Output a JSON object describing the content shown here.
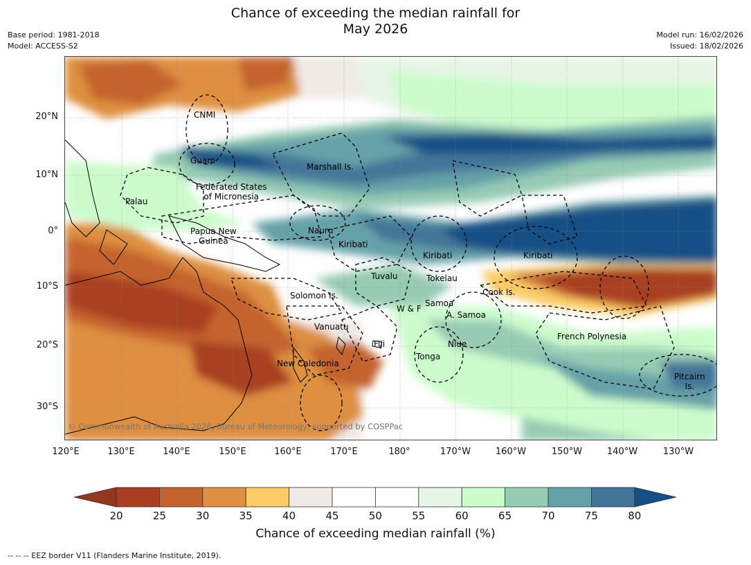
{
  "title_lines": [
    "Chance of exceeding the median rainfall for",
    "May 2026"
  ],
  "meta_left": [
    "Base period: 1981-2018",
    "Model: ACCESS-S2"
  ],
  "meta_right": [
    "Model run: 16/02/2026",
    "Issued: 18/02/2026"
  ],
  "map": {
    "latitude_labels": [
      "20°N",
      "10°N",
      "0°",
      "10°S",
      "20°S",
      "30°S"
    ],
    "longitude_labels": [
      "120°E",
      "130°E",
      "140°E",
      "150°E",
      "160°E",
      "170°E",
      "180°",
      "170°W",
      "160°W",
      "150°W",
      "140°W",
      "130°W"
    ],
    "places": [
      {
        "id": "cnmi",
        "text": "CNMI"
      },
      {
        "id": "guam",
        "text": "Guam"
      },
      {
        "id": "marshall",
        "text": "Marshall Is."
      },
      {
        "id": "fsm",
        "text": "Federated States\nof Micronesia"
      },
      {
        "id": "palau",
        "text": "Palau"
      },
      {
        "id": "png",
        "text": "Papua New\nGuinea"
      },
      {
        "id": "nauru",
        "text": "Nauru"
      },
      {
        "id": "kiribati1",
        "text": "Kiribati"
      },
      {
        "id": "kiribati2",
        "text": "Kiribati"
      },
      {
        "id": "kiribati3",
        "text": "Kiribati"
      },
      {
        "id": "tuvalu",
        "text": "Tuvalu"
      },
      {
        "id": "tokelau",
        "text": "Tokelau"
      },
      {
        "id": "cook",
        "text": "Cook Is."
      },
      {
        "id": "solomon",
        "text": "Solomon Is."
      },
      {
        "id": "samoa",
        "text": "Samoa"
      },
      {
        "id": "wf",
        "text": "W & F"
      },
      {
        "id": "asamoa",
        "text": "A. Samoa"
      },
      {
        "id": "vanuatu",
        "text": "Vanuatu"
      },
      {
        "id": "fiji",
        "text": "Fiji"
      },
      {
        "id": "niue",
        "text": "Niue"
      },
      {
        "id": "frpoly",
        "text": "French Polynesia"
      },
      {
        "id": "tonga",
        "text": "Tonga"
      },
      {
        "id": "newcal",
        "text": "New Caledonia"
      },
      {
        "id": "pitcairn",
        "text": "Pitcairn\nIs."
      }
    ],
    "copyright": "© Commonwealth of Australia 2026, Bureau of Meteorology, supported by COSPPac"
  },
  "colorbar": {
    "title": "Chance of exceeding median rainfall (%)",
    "labels": [
      "20",
      "25",
      "30",
      "35",
      "40",
      "45",
      "50",
      "55",
      "60",
      "65",
      "70",
      "75",
      "80"
    ],
    "colors": [
      "#a93f20",
      "#c4632e",
      "#de8f41",
      "#fbcb65",
      "#efeae6",
      "#ffffff",
      "#ffffff",
      "#e6f5e6",
      "#ccfccc",
      "#97cbb4",
      "#66a1a8",
      "#427698",
      "#154f85"
    ],
    "low_extend_color": "#963520",
    "high_extend_color": "#154f85"
  },
  "footnote": "--  --  -- EEZ border V11 (Flanders Marine Institute, 2019)."
}
